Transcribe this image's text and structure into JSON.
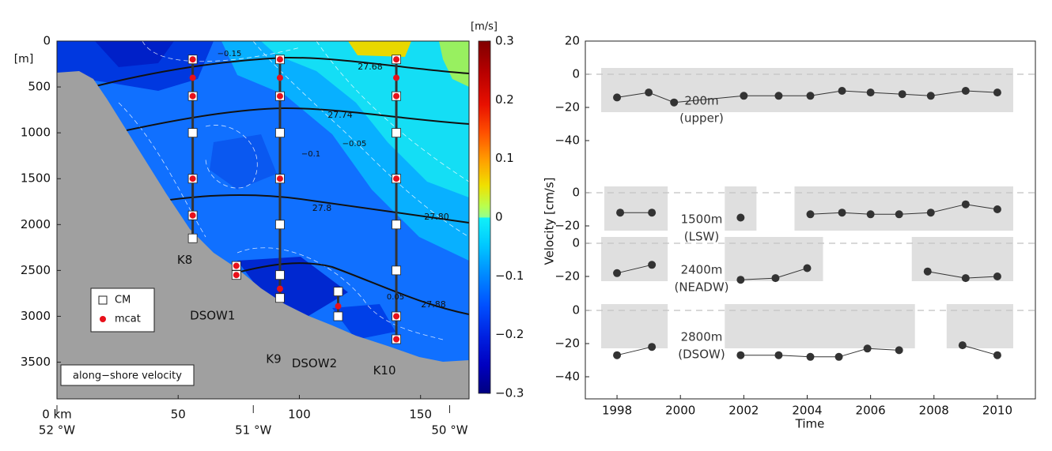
{
  "chart_data": [
    {
      "type": "section",
      "title": "along−shore velocity",
      "y_unit": "[m]",
      "xlim": [
        0,
        170
      ],
      "ylim": [
        0,
        3900
      ],
      "xticks": [
        {
          "value": 0,
          "label": "0 km"
        },
        50,
        100,
        150
      ],
      "x2ticks": [
        {
          "value": 0,
          "label": "52 °W"
        },
        {
          "value": 81,
          "label": "51 °W"
        },
        {
          "value": 162,
          "label": "50 °W"
        }
      ],
      "yticks": [
        0,
        500,
        1000,
        1500,
        2000,
        2500,
        3000,
        3500
      ],
      "colorbar": {
        "label": "[m/s]",
        "lim": [
          -0.3,
          0.3
        ],
        "ticks": [
          0.3,
          0.2,
          0.1,
          0,
          {
            "value": -0.1,
            "label": "−0.1"
          },
          {
            "value": -0.2,
            "label": "−0.2"
          },
          {
            "value": -0.3,
            "label": "−0.3"
          }
        ]
      },
      "legend_position": "lower left",
      "legend": [
        {
          "name": "CM",
          "marker": "square",
          "color": "#ffffff"
        },
        {
          "name": "mcat",
          "marker": "dot",
          "color": "#e8101a"
        }
      ],
      "moorings": [
        {
          "name": "K8",
          "x": 56,
          "CM": [
            200,
            600,
            1000,
            1500,
            1900,
            2150
          ],
          "mcat": [
            200,
            400,
            600,
            1500,
            1900
          ]
        },
        {
          "name": "DSOW1",
          "x": 74,
          "CM": [
            2450,
            2550
          ],
          "mcat": [
            2450,
            2550
          ]
        },
        {
          "name": "K9",
          "x": 92,
          "CM": [
            200,
            600,
            1000,
            1500,
            2000,
            2550,
            2800
          ],
          "mcat": [
            200,
            400,
            600,
            1500,
            2700
          ]
        },
        {
          "name": "DSOW2",
          "x": 116,
          "CM": [
            2730,
            3000
          ],
          "mcat": [
            2890
          ]
        },
        {
          "name": "K10",
          "x": 140,
          "CM": [
            200,
            600,
            1000,
            1500,
            2000,
            2500,
            3000,
            3250
          ],
          "mcat": [
            200,
            400,
            600,
            1500,
            3000,
            3250
          ]
        }
      ],
      "isopycnal_labels": [
        "27.68",
        "27.74",
        "27.8",
        "27.80",
        "27.88"
      ],
      "velocity_contour_labels": [
        "−0.15",
        "−0.1",
        "−0.05",
        "0.05"
      ]
    },
    {
      "type": "line",
      "xlabel": "Time",
      "ylabel": "Velocity [cm/s]",
      "xlim": [
        1997,
        2011.2
      ],
      "xticks": [
        1998,
        2000,
        2002,
        2004,
        2006,
        2008,
        2010
      ],
      "color": "#333333",
      "panels": [
        {
          "label": [
            "200m",
            "(upper)"
          ],
          "ylim": [
            -48,
            20
          ],
          "yticks": [
            20,
            0,
            {
              "value": -20,
              "label": "−20"
            },
            {
              "value": -40,
              "label": "−40"
            }
          ],
          "x": [
            1998.0,
            1999.0,
            1999.8,
            2002.0,
            2003.1,
            2004.1,
            2005.1,
            2006.0,
            2007.0,
            2007.9,
            2009.0,
            2010.0
          ],
          "values": [
            -14,
            -11,
            -17,
            -13,
            -13,
            -13,
            -10,
            -11,
            -12,
            -13,
            -10,
            -11
          ]
        },
        {
          "label": [
            "1500m",
            "(LSW)"
          ],
          "ylim": [
            -45,
            5
          ],
          "yticks": [
            0,
            {
              "value": -20,
              "label": "−20"
            }
          ],
          "x": [
            1998.1,
            1999.1,
            null,
            2001.9,
            null,
            2004.1,
            2005.1,
            2006.0,
            2006.9,
            2007.9,
            2009.0,
            2010.0
          ],
          "values": [
            -12,
            -12,
            null,
            -15,
            null,
            -13,
            -12,
            -13,
            -13,
            -12,
            -7,
            -10
          ]
        },
        {
          "label": [
            "2400m",
            "(NEADW)"
          ],
          "ylim": [
            -40,
            0
          ],
          "yticks": [
            0,
            {
              "value": -20,
              "label": "−20"
            }
          ],
          "x": [
            1998.0,
            1999.1,
            null,
            2001.9,
            2003.0,
            2004.0,
            null,
            2007.8,
            2009.0,
            2010.0
          ],
          "values": [
            -18,
            -13,
            null,
            -22,
            -21,
            -15,
            null,
            -17,
            -21,
            -20
          ]
        },
        {
          "label": [
            "2800m",
            "(DSOW)"
          ],
          "ylim": [
            -48,
            0
          ],
          "yticks": [
            0,
            {
              "value": -20,
              "label": "−20"
            },
            {
              "value": -40,
              "label": "−40"
            }
          ],
          "x": [
            1998.0,
            1999.1,
            null,
            2001.9,
            2003.1,
            2004.1,
            2005.0,
            2005.9,
            2006.9,
            null,
            2008.9,
            2010.0
          ],
          "values": [
            -27,
            -22,
            null,
            -27,
            -27,
            -28,
            -28,
            -23,
            -24,
            null,
            -21,
            -27
          ]
        }
      ]
    }
  ]
}
